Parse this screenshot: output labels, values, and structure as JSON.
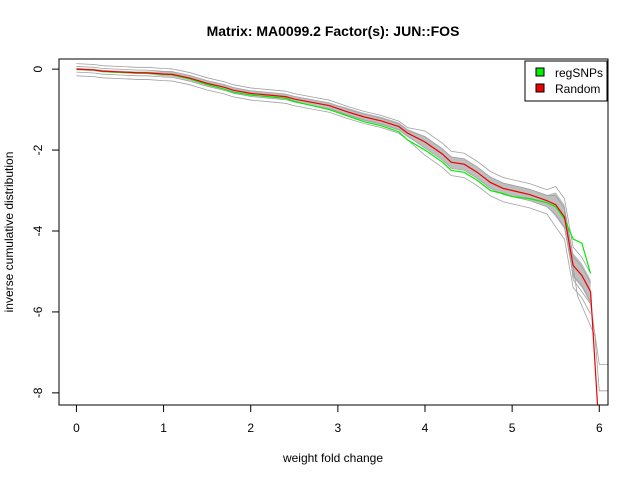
{
  "chart_data": {
    "type": "line",
    "title": "Matrix: MA0099.2 Factor(s): JUN::FOS",
    "xlabel": "weight fold change",
    "ylabel": "inverse cumulative distribution",
    "xlim": [
      -0.2,
      6.1
    ],
    "ylim": [
      -8.3,
      0.25
    ],
    "xticks": [
      0,
      1,
      2,
      3,
      4,
      5,
      6
    ],
    "yticks": [
      0,
      -2,
      -4,
      -6,
      -8
    ],
    "grid": false,
    "legend_position": "top-right",
    "series": [
      {
        "name": "regSNPs",
        "color": "#00ee00",
        "x": [
          0,
          0.2,
          0.3,
          0.5,
          0.7,
          0.8,
          1.0,
          1.1,
          1.3,
          1.5,
          1.7,
          1.8,
          2.0,
          2.2,
          2.4,
          2.5,
          2.7,
          2.9,
          3.1,
          3.3,
          3.5,
          3.7,
          3.8,
          4.0,
          4.2,
          4.3,
          4.45,
          4.6,
          4.75,
          4.9,
          5.0,
          5.2,
          5.4,
          5.5,
          5.6,
          5.7,
          5.8,
          5.9
        ],
        "y": [
          0,
          -0.02,
          -0.06,
          -0.08,
          -0.1,
          -0.1,
          -0.13,
          -0.14,
          -0.24,
          -0.38,
          -0.5,
          -0.57,
          -0.64,
          -0.68,
          -0.72,
          -0.8,
          -0.9,
          -1.0,
          -1.15,
          -1.3,
          -1.4,
          -1.55,
          -1.75,
          -2.0,
          -2.3,
          -2.5,
          -2.55,
          -2.75,
          -3.0,
          -3.08,
          -3.15,
          -3.2,
          -3.3,
          -3.4,
          -3.7,
          -4.2,
          -4.3,
          -5.05
        ]
      },
      {
        "name": "Random",
        "color": "#ee0000",
        "x": [
          0,
          0.2,
          0.3,
          0.5,
          0.7,
          0.8,
          1.0,
          1.1,
          1.3,
          1.5,
          1.7,
          1.8,
          2.0,
          2.2,
          2.4,
          2.5,
          2.7,
          2.9,
          3.1,
          3.3,
          3.5,
          3.7,
          3.8,
          4.0,
          4.2,
          4.3,
          4.45,
          4.6,
          4.75,
          4.9,
          5.0,
          5.2,
          5.4,
          5.5,
          5.6,
          5.7,
          5.8,
          5.9,
          5.98
        ],
        "y": [
          0,
          -0.02,
          -0.05,
          -0.07,
          -0.09,
          -0.09,
          -0.12,
          -0.13,
          -0.22,
          -0.35,
          -0.45,
          -0.52,
          -0.6,
          -0.64,
          -0.68,
          -0.74,
          -0.82,
          -0.9,
          -1.05,
          -1.18,
          -1.28,
          -1.42,
          -1.58,
          -1.8,
          -2.1,
          -2.3,
          -2.35,
          -2.55,
          -2.8,
          -2.95,
          -3.0,
          -3.1,
          -3.25,
          -3.35,
          -3.65,
          -4.85,
          -5.1,
          -5.5,
          -8.3
        ]
      }
    ]
  }
}
